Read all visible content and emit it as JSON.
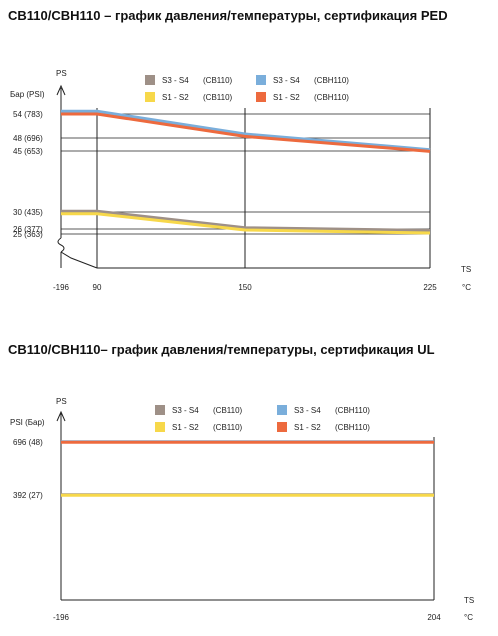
{
  "chart_data": [
    {
      "type": "line",
      "title": "CB110/CBH110 – график давления/температуры, сертификация PED",
      "y_axis_title": "PS",
      "y_unit_label": "Бар (PSI)",
      "x_axis_title": "TS",
      "x_unit_label": "°C",
      "x_ticks": [
        "-196",
        "90",
        "150",
        "225"
      ],
      "y_ticks": [
        "54  (783)",
        "48  (696)",
        "45  (653)",
        "30  (435)",
        "26  (377)",
        "25  (363)"
      ],
      "x_break": true,
      "legend": {
        "placement": "top",
        "items": [
          {
            "label": "S3 - S4",
            "model": "(CB110)",
            "color": "#9e9087"
          },
          {
            "label": "S3 - S4",
            "model": "(CBH110)",
            "color": "#7aaedb"
          },
          {
            "label": "S1 - S2",
            "model": "(CB110)",
            "color": "#f7d84a"
          },
          {
            "label": "S1 - S2",
            "model": "(CBH110)",
            "color": "#ed6a3e"
          }
        ]
      },
      "series": [
        {
          "name": "S3 - S4 (CBH110)",
          "color": "#7aaedb",
          "x": [
            -196,
            90,
            150,
            225
          ],
          "y": [
            54.7,
            54.7,
            49.0,
            45.3
          ]
        },
        {
          "name": "S1 - S2 (CBH110)",
          "color": "#ed6a3e",
          "x": [
            -196,
            90,
            150,
            225
          ],
          "y": [
            54.0,
            54.0,
            48.4,
            44.9
          ]
        },
        {
          "name": "S3 - S4 (CB110)",
          "color": "#9e9087",
          "x": [
            -196,
            90,
            150,
            225
          ],
          "y": [
            30.2,
            30.2,
            26.3,
            25.7
          ]
        },
        {
          "name": "S1 - S2 (CB110)",
          "color": "#f7d84a",
          "x": [
            -196,
            90,
            150,
            225
          ],
          "y": [
            29.6,
            29.6,
            25.8,
            25.2
          ]
        }
      ]
    },
    {
      "type": "line",
      "title": "CB110/CBH110– график давления/температуры, сертификация UL",
      "y_axis_title": "PS",
      "y_unit_label": "PSI  (Бар)",
      "x_axis_title": "TS",
      "x_unit_label": "°C",
      "x_ticks": [
        "-196",
        "204"
      ],
      "y_ticks": [
        "696  (48)",
        "392  (27)"
      ],
      "legend": {
        "placement": "top",
        "items": [
          {
            "label": "S3 - S4",
            "model": "(CB110)",
            "color": "#9e9087"
          },
          {
            "label": "S3 - S4",
            "model": "(CBH110)",
            "color": "#7aaedb"
          },
          {
            "label": "S1 - S2",
            "model": "(CB110)",
            "color": "#f7d84a"
          },
          {
            "label": "S1 - S2",
            "model": "(CBH110)",
            "color": "#ed6a3e"
          }
        ]
      },
      "series": [
        {
          "name": "S3 - S4 (CBH110)",
          "color": "#7aaedb",
          "x": [
            -196,
            204
          ],
          "y": [
            698,
            698
          ]
        },
        {
          "name": "S1 - S2 (CBH110)",
          "color": "#ed6a3e",
          "x": [
            -196,
            204
          ],
          "y": [
            694,
            694
          ]
        },
        {
          "name": "S3 - S4 (CB110)",
          "color": "#9e9087",
          "x": [
            -196,
            204
          ],
          "y": [
            394,
            394
          ]
        },
        {
          "name": "S1 - S2 (CB110)",
          "color": "#f7d84a",
          "x": [
            -196,
            204
          ],
          "y": [
            390,
            390
          ]
        }
      ]
    }
  ]
}
